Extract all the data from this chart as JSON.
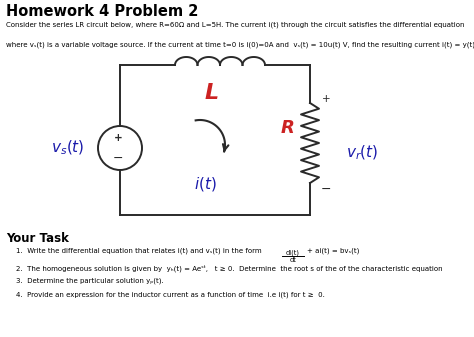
{
  "title": "Homework 4 Problem 2",
  "bg_color": "#ffffff",
  "intro_line1": "Consider the series LR circuit below, where R=60Ω and L=5H. The current i(t) through the circuit satisfies the differential equation",
  "intro_line2": "where vₛ(t) is a variable voltage source. If the current at time t=0 is i(0)=0A and  vₛ(t) = 10u(t) V, find the resulting current i(t) = y(t)",
  "your_task": "Your Task",
  "task1": "1.  Write the differential equation that relates i(t) and vₛ(t) in the form",
  "task1b": "+ ai(t) = bvₛ(t)",
  "task1_frac_num": "di(t)",
  "task1_frac_den": "dt",
  "task2": "2.  The homogeneous solution is given by  yₕ(t) = Aeˢᵗ,   t ≥ 0.  Determine  the root s of the of the characteristic equation",
  "task3": "3.  Determine the particular solution yₚ(t).",
  "task4": "4.  Provide an expression for the inductor current as a function of time  i.e i(t) for t ≥  0.",
  "circuit_color": "#2a2a2a",
  "red_color": "#cc2222",
  "blue_color": "#1a1aaa"
}
